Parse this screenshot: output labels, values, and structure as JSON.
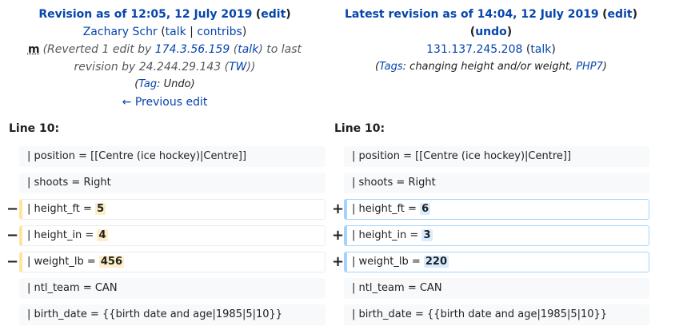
{
  "left": {
    "title_prefix": "Revision as of 12:05, 12 July 2019",
    "edit_label": "edit",
    "user": "Zachary Schr",
    "talk": "talk",
    "contribs": "contribs",
    "minor": "m",
    "summary_prefix": "(Reverted 1 edit by ",
    "summary_ip": "174.3.56.159",
    "summary_talk": "talk",
    "summary_mid": " to last revision by 24.244.29.143 (",
    "summary_tw": "TW",
    "summary_end": "))",
    "tag_prefix": "(",
    "tag_label": "Tag",
    "tag_value": ": Undo)",
    "prev_edit": "← Previous edit"
  },
  "right": {
    "title_prefix": "Latest revision as of 14:04, 12 July 2019",
    "edit_label": "edit",
    "undo_label": "undo",
    "user": "131.137.245.208",
    "talk": "talk",
    "tags_open": "(",
    "tags_label": "Tags",
    "tags_text": ": changing height and/or weight, ",
    "tags_php": "PHP7",
    "tags_close": ")"
  },
  "line_label_left": "Line 10:",
  "line_label_right": "Line 10:",
  "markers": {
    "minus": "−",
    "plus": "+"
  },
  "diff": {
    "r0": "| position = [[Centre (ice hockey)|Centre]]",
    "r1": "| shoots = Right",
    "r2_prefix": "| height_ft = ",
    "r2_old": "5",
    "r2_new": "6",
    "r3_prefix": "| height_in = ",
    "r3_old": "4",
    "r3_new": "3",
    "r4_prefix": "| weight_lb = ",
    "r4_old": "456",
    "r4_new": "220",
    "r5": "| ntl_team = CAN",
    "r6": "| birth_date = {{birth date and age|1985|5|10}}"
  },
  "colors": {
    "link": "#0645ad",
    "deleted_border": "#ffe49c",
    "added_border": "#a3d3ff",
    "deleted_highlight": "#feeec8",
    "added_highlight": "#d8ecff",
    "context_bg": "#f8f9fa"
  }
}
